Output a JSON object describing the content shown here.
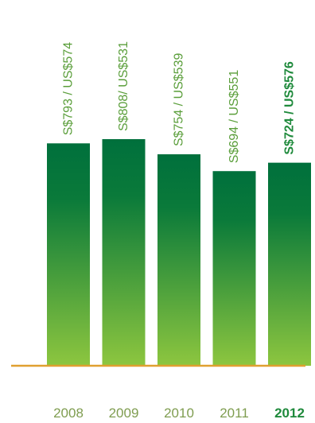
{
  "chart_data": {
    "type": "bar",
    "categories": [
      "2008",
      "2009",
      "2010",
      "2011",
      "2012"
    ],
    "value_labels": [
      "S$793 / US$574",
      "S$808/ US$531",
      "S$754 / US$539",
      "S$694 / US$551",
      "S$724 / US$576"
    ],
    "values": [
      793,
      808,
      754,
      694,
      724
    ],
    "highlight_index": 4,
    "title": "",
    "xlabel": "",
    "ylabel": "",
    "colors": {
      "bar_top": "#00703c",
      "bar_bottom": "#8dc63f",
      "baseline": "#e0a030",
      "label": "#5a9e3a",
      "highlight_label": "#1f8a3c",
      "axis_text": "#7f9d50"
    }
  }
}
